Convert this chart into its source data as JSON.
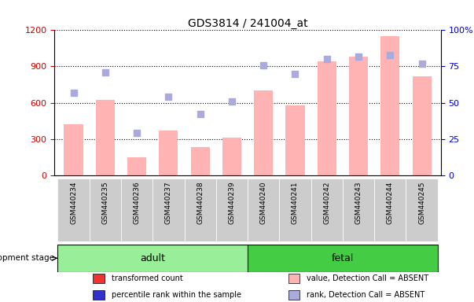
{
  "title": "GDS3814 / 241004_at",
  "samples": [
    "GSM440234",
    "GSM440235",
    "GSM440236",
    "GSM440237",
    "GSM440238",
    "GSM440239",
    "GSM440240",
    "GSM440241",
    "GSM440242",
    "GSM440243",
    "GSM440244",
    "GSM440245"
  ],
  "bar_values": [
    420,
    620,
    150,
    370,
    230,
    310,
    700,
    580,
    940,
    980,
    1150,
    820
  ],
  "rank_values": [
    57,
    71,
    29,
    54,
    42,
    51,
    76,
    70,
    80,
    82,
    83,
    77
  ],
  "bar_color_absent": "#FFB3B3",
  "rank_color_absent": "#AAAADD",
  "ylim_left": [
    0,
    1200
  ],
  "ylim_right": [
    0,
    100
  ],
  "yticks_left": [
    0,
    300,
    600,
    900,
    1200
  ],
  "yticks_right": [
    0,
    25,
    50,
    75,
    100
  ],
  "adult_color": "#99EE99",
  "fetal_color": "#44CC44",
  "group_label": "development stage",
  "legend_items": [
    {
      "label": "transformed count",
      "color": "#EE3333"
    },
    {
      "label": "percentile rank within the sample",
      "color": "#3333CC"
    },
    {
      "label": "value, Detection Call = ABSENT",
      "color": "#FFB3B3"
    },
    {
      "label": "rank, Detection Call = ABSENT",
      "color": "#AAAADD"
    }
  ],
  "background_color": "#FFFFFF",
  "tick_label_color_left": "#CC0000",
  "tick_label_color_right": "#0000CC",
  "tick_box_color": "#CCCCCC",
  "n_adult": 6,
  "n_fetal": 6
}
